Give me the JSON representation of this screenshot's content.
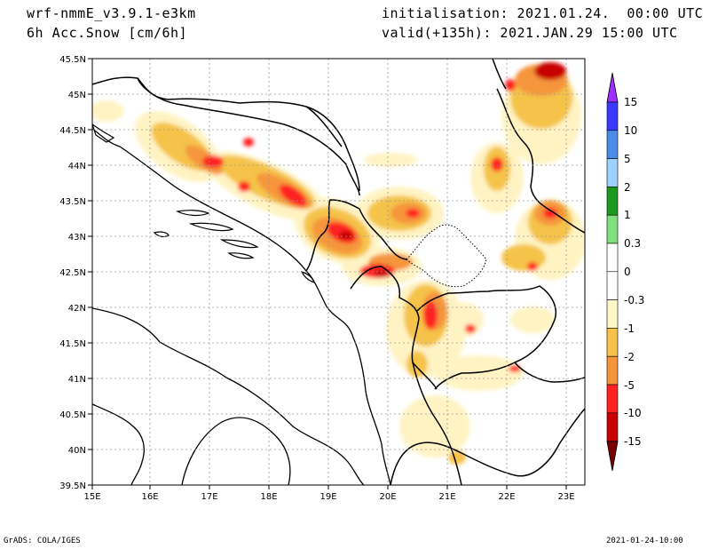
{
  "header": {
    "model": "wrf-nmmE_v3.9.1-e3km",
    "variable": "6h Acc.Snow [cm/6h]",
    "init": "initialisation: 2021.01.24.  00:00 UTC",
    "valid": "valid(+135h): 2021.JAN.29 15:00 UTC"
  },
  "footer": {
    "left": "GrADS: COLA/IGES",
    "right": "2021-01-24-10:00"
  },
  "axes": {
    "lat_labels": [
      "45.5N",
      "45N",
      "44.5N",
      "44N",
      "43.5N",
      "43N",
      "42.5N",
      "42N",
      "41.5N",
      "41N",
      "40.5N",
      "40N",
      "39.5N"
    ],
    "lon_labels": [
      "15E",
      "16E",
      "17E",
      "18E",
      "19E",
      "20E",
      "21E",
      "22E",
      "23E"
    ]
  },
  "colorbar": {
    "labels": [
      "15",
      "10",
      "5",
      "2",
      "1",
      "0.3",
      "0",
      "-0.3",
      "-1",
      "-2",
      "-5",
      "-10",
      "-15"
    ],
    "colors": [
      "#3a3aff",
      "#4a8ce8",
      "#9fd0ff",
      "#1d9a1d",
      "#7ee07e",
      "#ffffff",
      "#ffffff",
      "#fff7c8",
      "#f5c34a",
      "#f5963c",
      "#ff2020",
      "#c80000",
      "#8b0000"
    ],
    "top_arrow_color": "#9b30ff",
    "bottom_arrow_color": "#7a0000"
  },
  "colors": {
    "coast": "#000000",
    "border": "#000000",
    "kosovo_border": "#000000",
    "grid": "#9a9a9a"
  }
}
